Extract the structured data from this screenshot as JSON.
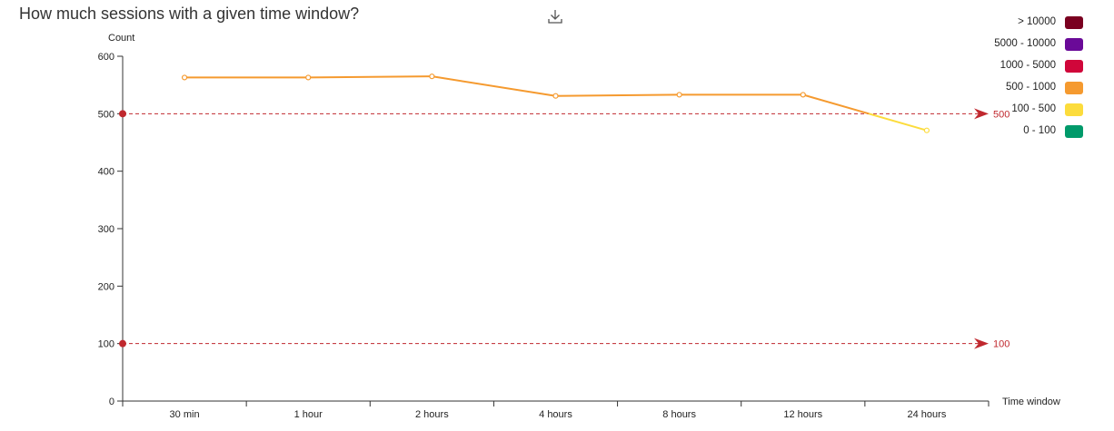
{
  "title": "How much sessions with a given time window?",
  "download_icon": "download-icon",
  "legend": [
    {
      "label": "> 10000",
      "color": "#7a0020"
    },
    {
      "label": "5000 - 10000",
      "color": "#6a0a98"
    },
    {
      "label": "1000 - 5000",
      "color": "#d0063a"
    },
    {
      "label": "500 - 1000",
      "color": "#f59a2f"
    },
    {
      "label": "100 - 500",
      "color": "#fcdc3c"
    },
    {
      "label": "0 - 100",
      "color": "#009a6a"
    }
  ],
  "chart_data": {
    "type": "line",
    "xlabel": "Time window",
    "ylabel": "Count",
    "categories": [
      "30 min",
      "1 hour",
      "2 hours",
      "4 hours",
      "8 hours",
      "12 hours",
      "24 hours"
    ],
    "values": [
      563,
      563,
      565,
      531,
      533,
      533,
      471
    ],
    "ylim": [
      0,
      600
    ],
    "yticks": [
      0,
      100,
      200,
      300,
      400,
      500,
      600
    ],
    "reference_lines": [
      {
        "value": 500,
        "label": "500",
        "color": "#c0282e"
      },
      {
        "value": 100,
        "label": "100",
        "color": "#c0282e"
      }
    ],
    "line_colors": {
      "500 - 1000": "#f59a2f",
      "100 - 500": "#fcdc3c"
    },
    "grid": false,
    "legend_position": "top-right"
  }
}
